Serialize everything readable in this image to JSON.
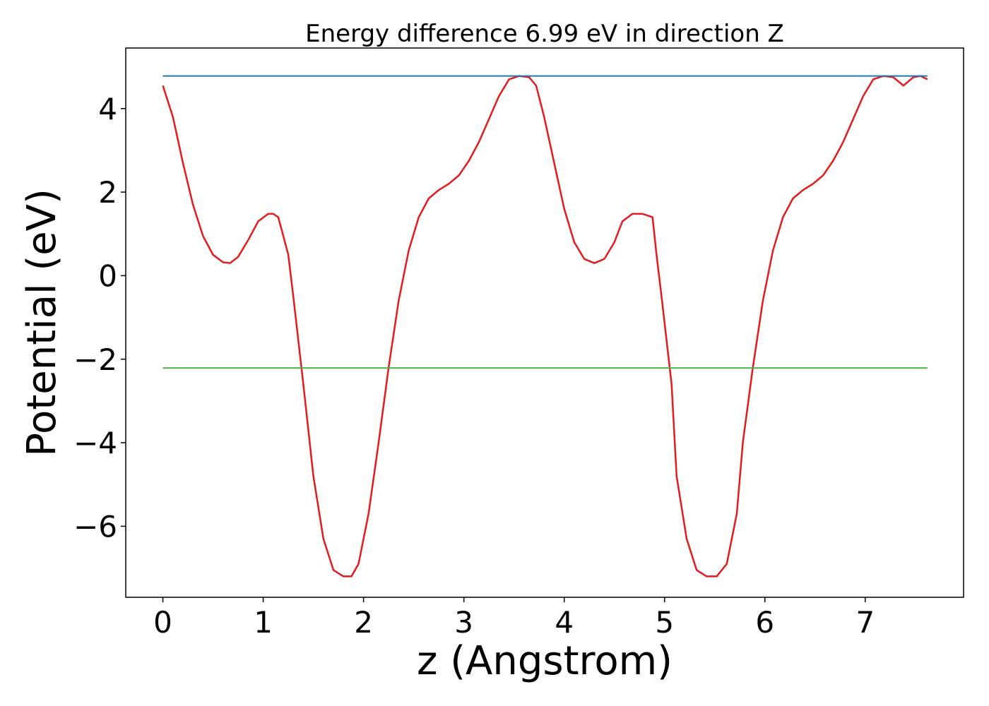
{
  "chart_data": {
    "type": "line",
    "title": "Energy difference 6.99 eV in direction Z",
    "xlabel": "z (Angstrom)",
    "ylabel": "Potential (eV)",
    "xlim": [
      -0.37,
      7.98
    ],
    "ylim": [
      -7.7,
      5.45
    ],
    "grid": false,
    "xticks": [
      0,
      1,
      2,
      3,
      4,
      5,
      6,
      7
    ],
    "xtick_labels": [
      "0",
      "1",
      "2",
      "3",
      "4",
      "5",
      "6",
      "7"
    ],
    "yticks": [
      -6,
      -4,
      -2,
      0,
      2,
      4
    ],
    "ytick_labels": [
      "−6",
      "−4",
      "−2",
      "0",
      "2",
      "4"
    ],
    "series": [
      {
        "color": "#e41a1c",
        "x": [
          0,
          0.1,
          0.2,
          0.3,
          0.4,
          0.5,
          0.6,
          0.67,
          0.75,
          0.85,
          0.95,
          1.05,
          1.1,
          1.15,
          1.25,
          1.3,
          1.4,
          1.5,
          1.6,
          1.7,
          1.8,
          1.88,
          1.95,
          2.05,
          2.15,
          2.25,
          2.35,
          2.45,
          2.55,
          2.65,
          2.75,
          2.85,
          2.95,
          3.05,
          3.15,
          3.25,
          3.35,
          3.45,
          3.55,
          3.65,
          3.72,
          3.8,
          3.9,
          4.0,
          4.1,
          4.2,
          4.3,
          4.4,
          4.5,
          4.58,
          4.68,
          4.78,
          4.88,
          4.92,
          4.97,
          5.07,
          5.12,
          5.22,
          5.32,
          5.42,
          5.52,
          5.62,
          5.72,
          5.78,
          5.88,
          5.98,
          6.08,
          6.18,
          6.28,
          6.38,
          6.48,
          6.58,
          6.68,
          6.78,
          6.88,
          6.98,
          7.08,
          7.18,
          7.28,
          7.38,
          7.48,
          7.55,
          7.62
        ],
        "values": [
          4.55,
          3.8,
          2.7,
          1.7,
          0.95,
          0.5,
          0.32,
          0.3,
          0.45,
          0.85,
          1.3,
          1.48,
          1.48,
          1.4,
          0.5,
          -0.5,
          -2.6,
          -4.8,
          -6.3,
          -7.05,
          -7.2,
          -7.2,
          -6.9,
          -5.7,
          -4.0,
          -2.2,
          -0.6,
          0.6,
          1.4,
          1.85,
          2.05,
          2.2,
          2.4,
          2.75,
          3.2,
          3.75,
          4.3,
          4.7,
          4.78,
          4.75,
          4.55,
          3.8,
          2.7,
          1.6,
          0.8,
          0.4,
          0.3,
          0.4,
          0.8,
          1.3,
          1.48,
          1.48,
          1.4,
          0.5,
          -0.5,
          -2.6,
          -4.8,
          -6.3,
          -7.05,
          -7.2,
          -7.2,
          -6.9,
          -5.7,
          -4.0,
          -2.2,
          -0.6,
          0.6,
          1.4,
          1.85,
          2.05,
          2.2,
          2.4,
          2.75,
          3.2,
          3.75,
          4.3,
          4.7,
          4.78,
          4.75,
          4.55,
          4.75,
          4.78,
          4.7
        ]
      },
      {
        "color": "#1f77b4",
        "x": [
          0,
          7.62
        ],
        "values": [
          4.78,
          4.78
        ]
      },
      {
        "color": "#4daf4a",
        "x": [
          0,
          7.62
        ],
        "values": [
          -2.21,
          -2.21
        ]
      }
    ]
  }
}
